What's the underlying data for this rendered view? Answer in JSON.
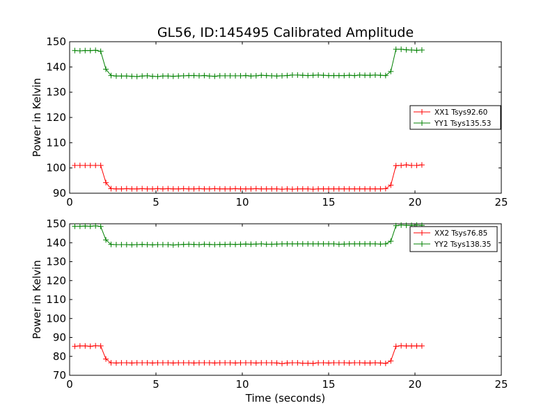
{
  "title": "GL56, ID:145495 Calibrated Amplitude",
  "chart_data": [
    {
      "type": "line",
      "xlabel": "",
      "ylabel": "Power in Kelvin",
      "xlim": [
        0,
        25
      ],
      "ylim": [
        90,
        150
      ],
      "xticks": [
        "0",
        "5",
        "10",
        "15",
        "20",
        "25"
      ],
      "yticks": [
        "90",
        "100",
        "110",
        "120",
        "130",
        "140",
        "150"
      ],
      "legend_position": "center-right",
      "series": [
        {
          "name": "XX1 Tsys92.60",
          "color": "#ff0000",
          "x": [
            0.3,
            0.6,
            0.9,
            1.2,
            1.5,
            1.8,
            2.1,
            2.4,
            2.7,
            3.0,
            3.3,
            3.6,
            3.9,
            4.2,
            4.5,
            4.8,
            5.1,
            5.4,
            5.7,
            6.0,
            6.3,
            6.6,
            6.9,
            7.2,
            7.5,
            7.8,
            8.1,
            8.4,
            8.7,
            9.0,
            9.3,
            9.6,
            9.9,
            10.2,
            10.5,
            10.8,
            11.1,
            11.4,
            11.7,
            12.0,
            12.3,
            12.6,
            12.9,
            13.2,
            13.5,
            13.8,
            14.1,
            14.4,
            14.7,
            15.0,
            15.3,
            15.6,
            15.9,
            16.2,
            16.5,
            16.8,
            17.1,
            17.4,
            17.7,
            18.0,
            18.3,
            18.6,
            18.9,
            19.2,
            19.5,
            19.8,
            20.1,
            20.4
          ],
          "y": [
            101,
            101,
            101,
            101,
            101,
            101,
            94.2,
            91.8,
            91.7,
            91.7,
            91.8,
            91.7,
            91.7,
            91.8,
            91.7,
            91.7,
            91.8,
            91.7,
            91.8,
            91.7,
            91.7,
            91.8,
            91.7,
            91.7,
            91.8,
            91.7,
            91.7,
            91.8,
            91.7,
            91.7,
            91.7,
            91.8,
            91.7,
            91.7,
            91.7,
            91.8,
            91.7,
            91.7,
            91.7,
            91.7,
            91.6,
            91.7,
            91.6,
            91.7,
            91.7,
            91.7,
            91.6,
            91.7,
            91.7,
            91.7,
            91.7,
            91.7,
            91.7,
            91.7,
            91.7,
            91.7,
            91.7,
            91.7,
            91.7,
            91.7,
            91.8,
            93.2,
            100.9,
            101,
            101.2,
            101,
            101,
            101.2
          ]
        },
        {
          "name": "YY1 Tsys135.53",
          "color": "#008000",
          "x": [
            0.3,
            0.6,
            0.9,
            1.2,
            1.5,
            1.8,
            2.1,
            2.4,
            2.7,
            3.0,
            3.3,
            3.6,
            3.9,
            4.2,
            4.5,
            4.8,
            5.1,
            5.4,
            5.7,
            6.0,
            6.3,
            6.6,
            6.9,
            7.2,
            7.5,
            7.8,
            8.1,
            8.4,
            8.7,
            9.0,
            9.3,
            9.6,
            9.9,
            10.2,
            10.5,
            10.8,
            11.1,
            11.4,
            11.7,
            12.0,
            12.3,
            12.6,
            12.9,
            13.2,
            13.5,
            13.8,
            14.1,
            14.4,
            14.7,
            15.0,
            15.3,
            15.6,
            15.9,
            16.2,
            16.5,
            16.8,
            17.1,
            17.4,
            17.7,
            18.0,
            18.3,
            18.6,
            18.9,
            19.2,
            19.5,
            19.8,
            20.1,
            20.4
          ],
          "y": [
            146.5,
            146.4,
            146.5,
            146.5,
            146.6,
            146.2,
            139.1,
            136.6,
            136.4,
            136.4,
            136.4,
            136.3,
            136.2,
            136.4,
            136.5,
            136.3,
            136.2,
            136.4,
            136.4,
            136.3,
            136.4,
            136.5,
            136.6,
            136.6,
            136.5,
            136.6,
            136.4,
            136.3,
            136.5,
            136.5,
            136.5,
            136.5,
            136.5,
            136.6,
            136.4,
            136.5,
            136.7,
            136.6,
            136.5,
            136.4,
            136.5,
            136.6,
            136.8,
            136.8,
            136.7,
            136.6,
            136.7,
            136.8,
            136.7,
            136.6,
            136.6,
            136.6,
            136.6,
            136.7,
            136.6,
            136.8,
            136.7,
            136.7,
            136.8,
            136.7,
            136.6,
            138.2,
            147.0,
            147.0,
            146.8,
            146.7,
            146.6,
            146.7
          ]
        }
      ]
    },
    {
      "type": "line",
      "xlabel": "Time (seconds)",
      "ylabel": "Power in Kelvin",
      "xlim": [
        0,
        25
      ],
      "ylim": [
        70,
        150
      ],
      "xticks": [
        "0",
        "5",
        "10",
        "15",
        "20",
        "25"
      ],
      "yticks": [
        "70",
        "80",
        "90",
        "100",
        "110",
        "120",
        "130",
        "140",
        "150"
      ],
      "legend_position": "top-right",
      "series": [
        {
          "name": "XX2 Tsys76.85",
          "color": "#ff0000",
          "x": [
            0.3,
            0.6,
            0.9,
            1.2,
            1.5,
            1.8,
            2.1,
            2.4,
            2.7,
            3.0,
            3.3,
            3.6,
            3.9,
            4.2,
            4.5,
            4.8,
            5.1,
            5.4,
            5.7,
            6.0,
            6.3,
            6.6,
            6.9,
            7.2,
            7.5,
            7.8,
            8.1,
            8.4,
            8.7,
            9.0,
            9.3,
            9.6,
            9.9,
            10.2,
            10.5,
            10.8,
            11.1,
            11.4,
            11.7,
            12.0,
            12.3,
            12.6,
            12.9,
            13.2,
            13.5,
            13.8,
            14.1,
            14.4,
            14.7,
            15.0,
            15.3,
            15.6,
            15.9,
            16.2,
            16.5,
            16.8,
            17.1,
            17.4,
            17.7,
            18.0,
            18.3,
            18.6,
            18.9,
            19.2,
            19.5,
            19.8,
            20.1,
            20.4
          ],
          "y": [
            85.3,
            85.5,
            85.5,
            85.3,
            85.6,
            85.5,
            78.6,
            76.6,
            76.5,
            76.6,
            76.6,
            76.5,
            76.6,
            76.6,
            76.6,
            76.5,
            76.6,
            76.6,
            76.6,
            76.5,
            76.6,
            76.6,
            76.6,
            76.5,
            76.6,
            76.6,
            76.6,
            76.5,
            76.6,
            76.6,
            76.6,
            76.5,
            76.6,
            76.6,
            76.6,
            76.5,
            76.6,
            76.6,
            76.6,
            76.5,
            76.2,
            76.5,
            76.6,
            76.6,
            76.4,
            76.4,
            76.3,
            76.6,
            76.6,
            76.5,
            76.6,
            76.6,
            76.6,
            76.5,
            76.6,
            76.6,
            76.5,
            76.5,
            76.6,
            76.5,
            76.3,
            77.6,
            85.3,
            85.6,
            85.5,
            85.5,
            85.5,
            85.5
          ]
        },
        {
          "name": "YY2 Tsys138.35",
          "color": "#008000",
          "x": [
            0.3,
            0.6,
            0.9,
            1.2,
            1.5,
            1.8,
            2.1,
            2.4,
            2.7,
            3.0,
            3.3,
            3.6,
            3.9,
            4.2,
            4.5,
            4.8,
            5.1,
            5.4,
            5.7,
            6.0,
            6.3,
            6.6,
            6.9,
            7.2,
            7.5,
            7.8,
            8.1,
            8.4,
            8.7,
            9.0,
            9.3,
            9.6,
            9.9,
            10.2,
            10.5,
            10.8,
            11.1,
            11.4,
            11.7,
            12.0,
            12.3,
            12.6,
            12.9,
            13.2,
            13.5,
            13.8,
            14.1,
            14.4,
            14.7,
            15.0,
            15.3,
            15.6,
            15.9,
            16.2,
            16.5,
            16.8,
            17.1,
            17.4,
            17.7,
            18.0,
            18.3,
            18.6,
            18.9,
            19.2,
            19.5,
            19.8,
            20.1,
            20.4
          ],
          "y": [
            148.7,
            148.7,
            148.8,
            148.7,
            148.9,
            148.6,
            141.5,
            139.1,
            139.0,
            139.0,
            139.0,
            138.9,
            139.0,
            139.1,
            139.0,
            138.9,
            139.0,
            139.0,
            139.0,
            138.8,
            139.0,
            139.1,
            139.2,
            139.1,
            139.0,
            139.2,
            139.1,
            139.0,
            139.1,
            139.1,
            139.2,
            139.1,
            139.2,
            139.3,
            139.2,
            139.3,
            139.4,
            139.2,
            139.2,
            139.3,
            139.4,
            139.4,
            139.4,
            139.4,
            139.4,
            139.4,
            139.4,
            139.4,
            139.4,
            139.4,
            139.4,
            139.2,
            139.3,
            139.4,
            139.4,
            139.4,
            139.4,
            139.4,
            139.4,
            139.3,
            139.4,
            140.8,
            149.0,
            149.3,
            149.2,
            149.2,
            149.3,
            149.2
          ]
        }
      ]
    }
  ]
}
